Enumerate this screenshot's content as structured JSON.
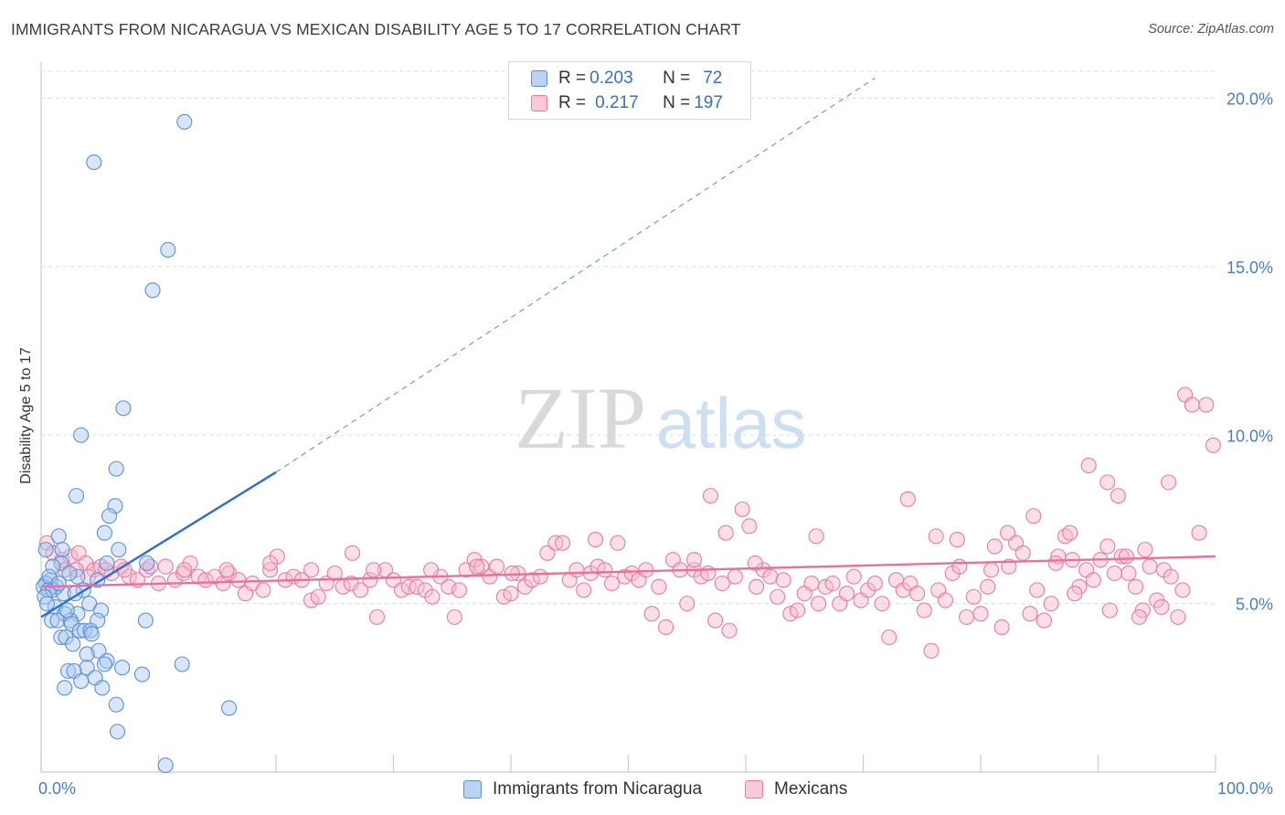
{
  "title": "IMMIGRANTS FROM NICARAGUA VS MEXICAN DISABILITY AGE 5 TO 17 CORRELATION CHART",
  "source": "Source: ZipAtlas.com",
  "watermark": {
    "zip": "ZIP",
    "atlas": "atlas"
  },
  "colors": {
    "blue_fill": "#a9c7f0",
    "blue_stroke": "#5b8fd6",
    "blue_line": "#2f6fcf",
    "pink_fill": "#f6b8cc",
    "pink_stroke": "#e87a9f",
    "pink_line": "#e8709a",
    "tick_text": "#4a7cc9",
    "grid": "#dcdcdc"
  },
  "legend": {
    "rows": [
      {
        "r_label": "R = ",
        "r_value": "0.203",
        "n_label": "N = ",
        "n_value": "72"
      },
      {
        "r_label": "R = ",
        "r_value": "0.217",
        "n_label": "N = ",
        "n_value": "197"
      }
    ]
  },
  "bottom_legend": [
    "Immigrants from Nicaragua",
    "Mexicans"
  ],
  "chart_data": {
    "type": "scatter",
    "ylabel": "Disability Age 5 to 17",
    "xlabel": "",
    "xlim": [
      0,
      100
    ],
    "ylim": [
      0,
      20.8
    ],
    "x_tick_labels": [
      "0.0%",
      "100.0%"
    ],
    "y_ticks": [
      5,
      10,
      15,
      20
    ],
    "y_tick_labels": [
      "5.0%",
      "10.0%",
      "15.0%",
      "20.0%"
    ],
    "grid": "horizontal dashed",
    "legend_position": "top-center",
    "series": [
      {
        "name": "Immigrants from Nicaragua",
        "r": 0.203,
        "n": 72,
        "trend": {
          "x": [
            0,
            20
          ],
          "y": [
            4.6,
            8.9
          ],
          "extended_to": [
            71,
            20.6
          ]
        },
        "points": [
          [
            12.2,
            19.3
          ],
          [
            4.5,
            18.1
          ],
          [
            10.8,
            15.5
          ],
          [
            9.5,
            14.3
          ],
          [
            7.0,
            10.8
          ],
          [
            3.4,
            10.0
          ],
          [
            6.4,
            9.0
          ],
          [
            3.0,
            8.2
          ],
          [
            6.3,
            7.9
          ],
          [
            5.8,
            7.6
          ],
          [
            5.4,
            7.1
          ],
          [
            1.5,
            7.0
          ],
          [
            0.4,
            6.6
          ],
          [
            6.6,
            6.6
          ],
          [
            1.8,
            6.6
          ],
          [
            5.6,
            6.2
          ],
          [
            9.0,
            6.2
          ],
          [
            1.7,
            6.2
          ],
          [
            3.1,
            5.8
          ],
          [
            0.8,
            5.7
          ],
          [
            0.4,
            5.6
          ],
          [
            1.3,
            5.5
          ],
          [
            0.2,
            5.5
          ],
          [
            0.6,
            5.4
          ],
          [
            1.0,
            5.4
          ],
          [
            3.6,
            5.4
          ],
          [
            0.3,
            5.2
          ],
          [
            1.9,
            5.3
          ],
          [
            2.9,
            5.3
          ],
          [
            4.8,
            5.7
          ],
          [
            1.2,
            4.9
          ],
          [
            4.1,
            5.0
          ],
          [
            2.0,
            4.7
          ],
          [
            3.1,
            4.7
          ],
          [
            5.1,
            4.8
          ],
          [
            0.9,
            4.5
          ],
          [
            1.4,
            4.5
          ],
          [
            2.5,
            4.5
          ],
          [
            2.6,
            4.4
          ],
          [
            4.8,
            4.5
          ],
          [
            8.9,
            4.5
          ],
          [
            3.3,
            4.2
          ],
          [
            3.7,
            4.2
          ],
          [
            4.2,
            4.2
          ],
          [
            1.7,
            4.0
          ],
          [
            2.1,
            4.0
          ],
          [
            4.3,
            4.1
          ],
          [
            2.7,
            3.8
          ],
          [
            4.9,
            3.6
          ],
          [
            3.9,
            3.5
          ],
          [
            5.6,
            3.3
          ],
          [
            12.0,
            3.2
          ],
          [
            3.9,
            3.1
          ],
          [
            5.4,
            3.2
          ],
          [
            6.9,
            3.1
          ],
          [
            2.3,
            3.0
          ],
          [
            2.8,
            3.0
          ],
          [
            8.6,
            2.9
          ],
          [
            4.6,
            2.8
          ],
          [
            3.4,
            2.7
          ],
          [
            2.0,
            2.5
          ],
          [
            5.2,
            2.5
          ],
          [
            6.4,
            2.0
          ],
          [
            16.0,
            1.9
          ],
          [
            6.5,
            1.2
          ],
          [
            10.6,
            0.2
          ],
          [
            1.0,
            6.1
          ],
          [
            2.4,
            5.9
          ],
          [
            0.7,
            5.8
          ],
          [
            1.5,
            5.6
          ],
          [
            2.2,
            4.8
          ],
          [
            0.5,
            5.0
          ]
        ]
      },
      {
        "name": "Mexicans",
        "r": 0.217,
        "n": 197,
        "trend": {
          "x": [
            0,
            100
          ],
          "y": [
            5.5,
            6.4
          ]
        },
        "points": [
          [
            0.5,
            6.8
          ],
          [
            1.0,
            6.5
          ],
          [
            1.8,
            6.3
          ],
          [
            2.5,
            6.4
          ],
          [
            3.2,
            6.5
          ],
          [
            2.0,
            6.0
          ],
          [
            3.8,
            6.2
          ],
          [
            4.5,
            6.0
          ],
          [
            5.1,
            6.1
          ],
          [
            6.0,
            5.9
          ],
          [
            6.8,
            6.1
          ],
          [
            7.5,
            5.8
          ],
          [
            8.2,
            5.7
          ],
          [
            9.0,
            6.0
          ],
          [
            10.0,
            5.6
          ],
          [
            10.6,
            6.1
          ],
          [
            11.4,
            5.7
          ],
          [
            12.1,
            5.9
          ],
          [
            12.7,
            6.2
          ],
          [
            13.4,
            5.8
          ],
          [
            14.0,
            5.7
          ],
          [
            14.8,
            5.8
          ],
          [
            15.5,
            5.6
          ],
          [
            16.0,
            5.9
          ],
          [
            16.8,
            5.7
          ],
          [
            17.4,
            5.3
          ],
          [
            18.0,
            5.6
          ],
          [
            18.9,
            5.4
          ],
          [
            19.5,
            6.0
          ],
          [
            20.1,
            6.4
          ],
          [
            20.8,
            5.7
          ],
          [
            21.5,
            5.8
          ],
          [
            22.2,
            5.7
          ],
          [
            23.0,
            5.1
          ],
          [
            23.6,
            5.2
          ],
          [
            24.3,
            5.6
          ],
          [
            25.0,
            5.9
          ],
          [
            25.7,
            5.5
          ],
          [
            26.4,
            5.6
          ],
          [
            27.2,
            5.4
          ],
          [
            28.0,
            5.7
          ],
          [
            28.6,
            4.6
          ],
          [
            29.3,
            6.0
          ],
          [
            30.0,
            5.7
          ],
          [
            30.7,
            5.4
          ],
          [
            31.3,
            5.5
          ],
          [
            32.0,
            5.5
          ],
          [
            32.7,
            5.4
          ],
          [
            33.3,
            5.2
          ],
          [
            34.0,
            5.8
          ],
          [
            34.7,
            5.5
          ],
          [
            35.2,
            4.6
          ],
          [
            35.6,
            5.4
          ],
          [
            36.2,
            6.0
          ],
          [
            36.9,
            6.3
          ],
          [
            37.5,
            6.1
          ],
          [
            38.2,
            5.8
          ],
          [
            38.8,
            6.1
          ],
          [
            39.4,
            5.2
          ],
          [
            40.0,
            5.3
          ],
          [
            40.6,
            5.9
          ],
          [
            41.2,
            5.5
          ],
          [
            41.8,
            5.7
          ],
          [
            42.5,
            5.8
          ],
          [
            43.1,
            6.5
          ],
          [
            43.8,
            6.8
          ],
          [
            44.4,
            6.8
          ],
          [
            45.0,
            5.7
          ],
          [
            45.6,
            6.0
          ],
          [
            46.2,
            5.4
          ],
          [
            46.8,
            5.9
          ],
          [
            47.4,
            6.1
          ],
          [
            48.0,
            6.0
          ],
          [
            48.6,
            5.6
          ],
          [
            49.1,
            6.8
          ],
          [
            49.7,
            5.8
          ],
          [
            50.3,
            5.9
          ],
          [
            50.9,
            5.7
          ],
          [
            51.5,
            6.0
          ],
          [
            52.0,
            4.7
          ],
          [
            52.6,
            5.5
          ],
          [
            53.2,
            4.3
          ],
          [
            53.8,
            6.3
          ],
          [
            54.4,
            6.0
          ],
          [
            55.0,
            5.0
          ],
          [
            55.6,
            6.0
          ],
          [
            56.2,
            5.8
          ],
          [
            56.8,
            5.9
          ],
          [
            57.4,
            4.5
          ],
          [
            58.0,
            5.6
          ],
          [
            58.6,
            4.2
          ],
          [
            59.1,
            5.8
          ],
          [
            59.7,
            7.8
          ],
          [
            60.3,
            7.3
          ],
          [
            60.9,
            5.5
          ],
          [
            61.5,
            6.0
          ],
          [
            62.1,
            5.8
          ],
          [
            62.7,
            5.2
          ],
          [
            63.2,
            5.7
          ],
          [
            63.8,
            4.7
          ],
          [
            64.4,
            4.8
          ],
          [
            65.0,
            5.3
          ],
          [
            65.6,
            5.6
          ],
          [
            66.2,
            5.0
          ],
          [
            66.8,
            5.5
          ],
          [
            67.4,
            5.6
          ],
          [
            68.0,
            5.0
          ],
          [
            68.6,
            5.3
          ],
          [
            69.2,
            5.8
          ],
          [
            69.8,
            5.1
          ],
          [
            70.4,
            5.4
          ],
          [
            71.0,
            5.6
          ],
          [
            71.6,
            5.0
          ],
          [
            72.2,
            4.0
          ],
          [
            72.8,
            5.7
          ],
          [
            73.4,
            5.4
          ],
          [
            74.0,
            5.6
          ],
          [
            74.6,
            5.3
          ],
          [
            75.2,
            4.8
          ],
          [
            75.8,
            3.6
          ],
          [
            76.4,
            5.4
          ],
          [
            77.0,
            5.1
          ],
          [
            77.6,
            5.9
          ],
          [
            78.2,
            6.1
          ],
          [
            78.8,
            4.6
          ],
          [
            79.4,
            5.2
          ],
          [
            80.0,
            4.7
          ],
          [
            80.6,
            5.5
          ],
          [
            81.2,
            6.7
          ],
          [
            81.8,
            4.3
          ],
          [
            82.4,
            6.1
          ],
          [
            83.0,
            6.8
          ],
          [
            83.6,
            6.5
          ],
          [
            84.2,
            4.7
          ],
          [
            84.8,
            5.4
          ],
          [
            85.4,
            4.5
          ],
          [
            86.0,
            5.0
          ],
          [
            86.6,
            6.4
          ],
          [
            87.2,
            7.0
          ],
          [
            87.8,
            6.3
          ],
          [
            88.4,
            5.5
          ],
          [
            89.0,
            6.0
          ],
          [
            89.6,
            5.7
          ],
          [
            90.2,
            6.3
          ],
          [
            90.8,
            6.7
          ],
          [
            91.4,
            5.9
          ],
          [
            92.0,
            6.4
          ],
          [
            92.6,
            5.9
          ],
          [
            93.2,
            5.5
          ],
          [
            93.8,
            4.8
          ],
          [
            94.4,
            6.1
          ],
          [
            95.0,
            5.1
          ],
          [
            95.6,
            6.0
          ],
          [
            96.2,
            5.8
          ],
          [
            96.8,
            4.6
          ],
          [
            97.4,
            11.2
          ],
          [
            98.0,
            10.9
          ],
          [
            98.6,
            7.1
          ],
          [
            99.2,
            10.9
          ],
          [
            99.8,
            9.7
          ],
          [
            76.2,
            7.0
          ],
          [
            73.8,
            8.1
          ],
          [
            89.2,
            9.1
          ],
          [
            90.8,
            8.6
          ],
          [
            84.5,
            7.6
          ],
          [
            87.6,
            7.1
          ],
          [
            96.0,
            8.6
          ],
          [
            91.7,
            8.2
          ],
          [
            94.0,
            6.6
          ],
          [
            86.4,
            6.2
          ],
          [
            82.3,
            7.1
          ],
          [
            78.0,
            6.9
          ],
          [
            80.9,
            6.0
          ],
          [
            66.0,
            7.0
          ],
          [
            60.8,
            6.2
          ],
          [
            57.0,
            8.2
          ],
          [
            58.3,
            7.1
          ],
          [
            47.2,
            6.9
          ],
          [
            55.6,
            6.3
          ],
          [
            40.1,
            5.9
          ],
          [
            37.1,
            6.1
          ],
          [
            33.2,
            6.0
          ],
          [
            28.3,
            6.0
          ],
          [
            26.5,
            6.5
          ],
          [
            23.0,
            6.0
          ],
          [
            19.5,
            6.2
          ],
          [
            15.8,
            6.0
          ],
          [
            12.2,
            6.0
          ],
          [
            9.3,
            6.1
          ],
          [
            7.1,
            6.0
          ],
          [
            5.5,
            6.0
          ],
          [
            4.0,
            5.8
          ],
          [
            3.0,
            6.0
          ],
          [
            97.2,
            5.4
          ],
          [
            95.4,
            4.9
          ],
          [
            93.5,
            4.6
          ],
          [
            92.4,
            6.4
          ],
          [
            91.0,
            4.8
          ],
          [
            88.0,
            5.3
          ]
        ]
      }
    ]
  }
}
